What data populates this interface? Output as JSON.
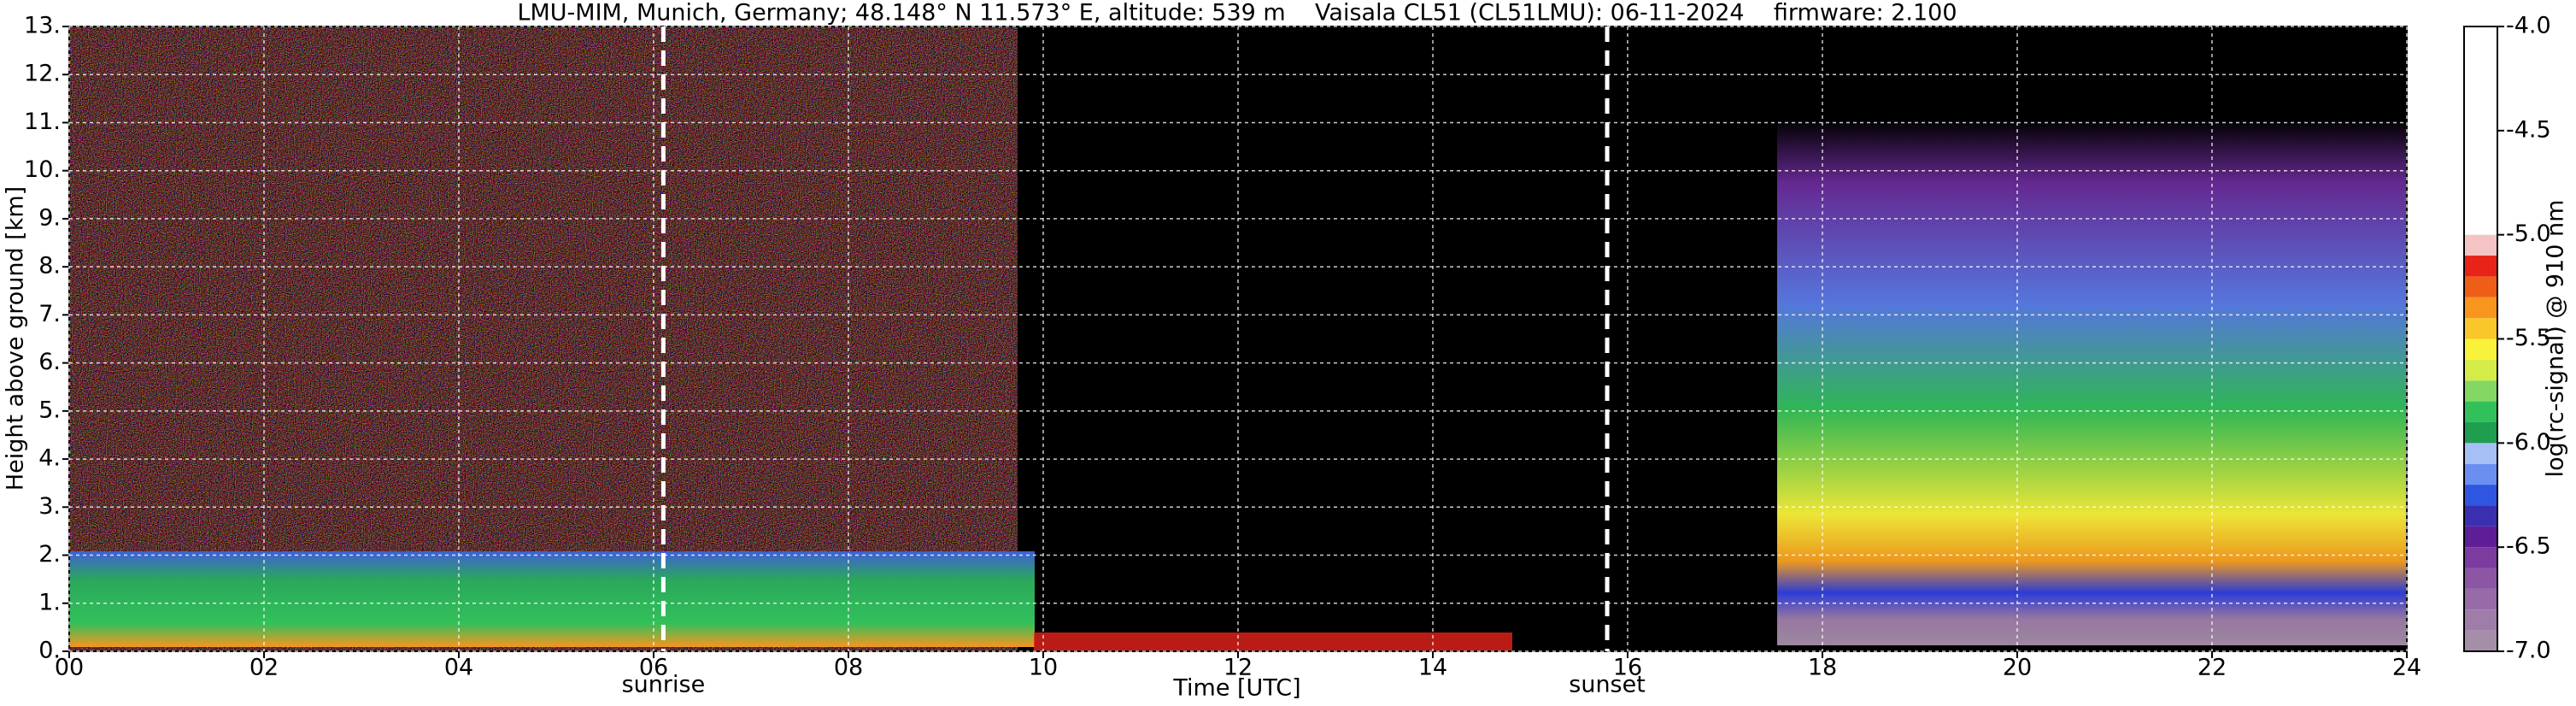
{
  "chart_data": {
    "type": "heatmap",
    "title": "LMU-MIM, Munich, Germany; 48.148° N 11.573° E, altitude: 539 m    Vaisala CL51 (CL51LMU): 06-11-2024    firmware: 2.100",
    "xlabel": "Time [UTC]",
    "ylabel": "Height above ground [km]",
    "xlim": [
      0,
      24
    ],
    "xticks": [
      {
        "value": 0,
        "label": "00"
      },
      {
        "value": 2,
        "label": "02"
      },
      {
        "value": 4,
        "label": "04"
      },
      {
        "value": 6,
        "label": "06"
      },
      {
        "value": 8,
        "label": "08"
      },
      10,
      12,
      14,
      16,
      18,
      20,
      22,
      24
    ],
    "ylim": [
      0,
      13
    ],
    "yticks": [
      {
        "value": 0,
        "label": "0."
      },
      {
        "value": 1,
        "label": "1."
      },
      {
        "value": 2,
        "label": "2."
      },
      {
        "value": 3,
        "label": "3."
      },
      {
        "value": 4,
        "label": "4."
      },
      {
        "value": 5,
        "label": "5."
      },
      {
        "value": 6,
        "label": "6."
      },
      {
        "value": 7,
        "label": "7."
      },
      {
        "value": 8,
        "label": "8."
      },
      {
        "value": 9,
        "label": "9."
      },
      {
        "value": 10,
        "label": "10."
      },
      {
        "value": 11,
        "label": "11."
      },
      {
        "value": 12,
        "label": "12."
      },
      {
        "value": 13,
        "label": "13."
      }
    ],
    "grid": true,
    "annotations": [
      {
        "text": "sunrise",
        "x": 6.1
      },
      {
        "text": "sunset",
        "x": 15.79
      }
    ],
    "colorbar": {
      "label": "log(rc-signal) @ 910 nm",
      "lim": [
        -7,
        -4
      ],
      "ticks": [
        {
          "value": -7,
          "label": "-7.0"
        },
        -6.5,
        {
          "value": -6,
          "label": "-6.0"
        },
        -5.5,
        {
          "value": -5,
          "label": "-5.0"
        },
        -4.5,
        {
          "value": -4,
          "label": "-4.0"
        }
      ],
      "bounds": [
        -7.0,
        -6.9,
        -6.8,
        -6.7,
        -6.6,
        -6.5,
        -6.4,
        -6.3,
        -6.2,
        -6.1,
        -6.0,
        -5.9,
        -5.8,
        -5.7,
        -5.6,
        -5.5,
        -5.4,
        -5.3,
        -5.2,
        -5.1,
        -5.0,
        -4.0
      ],
      "colors": [
        "#a58fa8",
        "#9f7da9",
        "#976ba8",
        "#8d56a5",
        "#7c3b9f",
        "#5e1e98",
        "#3a2fb0",
        "#2f56e0",
        "#6b8ff0",
        "#a6bff5",
        "#1e9e4e",
        "#32c05a",
        "#82d862",
        "#d5ec48",
        "#f8f23a",
        "#f9c72a",
        "#f7951f",
        "#ef5e17",
        "#e8231a",
        "#f4c4c4",
        "#ffffff"
      ]
    }
  }
}
